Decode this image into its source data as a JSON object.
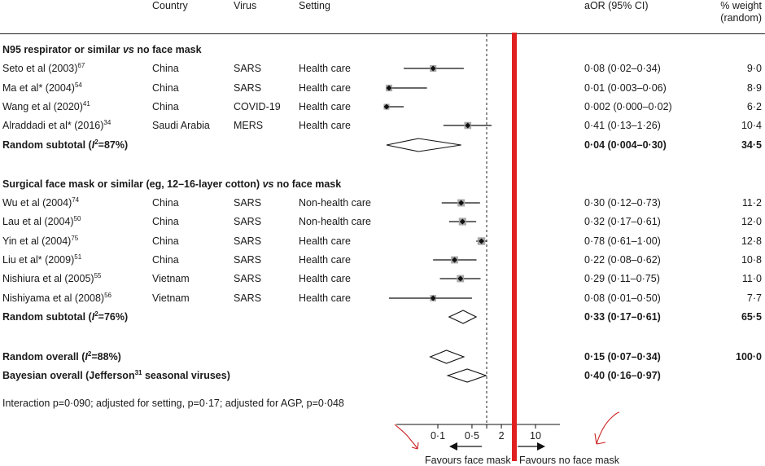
{
  "columns": {
    "country": "Country",
    "virus": "Virus",
    "setting": "Setting",
    "aor": "aOR (95% CI)",
    "weight_line1": "% weight",
    "weight_line2": "(random)"
  },
  "groups": [
    {
      "title_pre": "N95 respirator or similar ",
      "title_vs": "vs",
      "title_post": " no face mask",
      "studies": [
        {
          "author": "Seto et al (2003)",
          "ref": "67",
          "country": "China",
          "virus": "SARS",
          "setting": "Health care",
          "aor_text": "0·08 (0·02–0·34)",
          "weight": "9·0"
        },
        {
          "author": "Ma et al* (2004)",
          "ref": "54",
          "country": "China",
          "virus": "SARS",
          "setting": "Health care",
          "aor_text": "0·01 (0·003–0·06)",
          "weight": "8·9"
        },
        {
          "author": "Wang et al (2020)",
          "ref": "41",
          "country": "China",
          "virus": "COVID-19",
          "setting": "Health care",
          "aor_text": "0·002 (0·000–0·02)",
          "weight": "6·2"
        },
        {
          "author": "Alraddadi et al* (2016)",
          "ref": "34",
          "country": "Saudi Arabia",
          "virus": "MERS",
          "setting": "Health care",
          "aor_text": "0·41 (0·13–1·26)",
          "weight": "10·4"
        }
      ],
      "subtotal": {
        "label_pre": "Random subtotal  (",
        "label_i": "I",
        "label_sup": "2",
        "label_post": "=87%)",
        "aor_text": "0·04 (0·004–0·30)",
        "weight": "34·5"
      }
    },
    {
      "title_pre": "Surgical face mask or similar (eg, 12–16-layer cotton) ",
      "title_vs": "vs",
      "title_post": " no face mask",
      "studies": [
        {
          "author": "Wu et al (2004)",
          "ref": "74",
          "country": "China",
          "virus": "SARS",
          "setting": "Non-health care",
          "aor_text": "0·30 (0·12–0·73)",
          "weight": "11·2"
        },
        {
          "author": "Lau et al (2004)",
          "ref": "50",
          "country": "China",
          "virus": "SARS",
          "setting": "Non-health care",
          "aor_text": "0·32 (0·17–0·61)",
          "weight": "12·0"
        },
        {
          "author": "Yin et al (2004)",
          "ref": "75",
          "country": "China",
          "virus": "SARS",
          "setting": "Health care",
          "aor_text": "0·78 (0·61–1·00)",
          "weight": "12·8"
        },
        {
          "author": "Liu et al* (2009)",
          "ref": "51",
          "country": "China",
          "virus": "SARS",
          "setting": "Health care",
          "aor_text": "0·22 (0·08–0·62)",
          "weight": "10·8"
        },
        {
          "author": "Nishiura et al (2005)",
          "ref": "55",
          "country": "Vietnam",
          "virus": "SARS",
          "setting": "Health care",
          "aor_text": "0·29 (0·11–0·75)",
          "weight": "11·0"
        },
        {
          "author": "Nishiyama et al (2008)",
          "ref": "56",
          "country": "Vietnam",
          "virus": "SARS",
          "setting": "Health care",
          "aor_text": "0·08 (0·01–0·50)",
          "weight": "7·7"
        }
      ],
      "subtotal": {
        "label_pre": "Random subtotal  (",
        "label_i": "I",
        "label_sup": "2",
        "label_post": "=76%)",
        "aor_text": "0·33 (0·17–0·61)",
        "weight": "65·5"
      }
    }
  ],
  "overall": {
    "random": {
      "label_pre": "Random overall  (",
      "label_i": "I",
      "label_sup": "2",
      "label_post": "=88%)",
      "aor_text": "0·15 (0·07–0·34)",
      "weight": "100·0"
    },
    "bayesian": {
      "label_pre": "Bayesian overall (Jefferson",
      "label_sup": "31",
      "label_post": " seasonal viruses)",
      "aor_text": "0·40 (0·16–0·97)"
    }
  },
  "footnote": "Interaction p=0·090; adjusted for setting, p=0·17; adjusted for AGP, p=0·048",
  "axis": {
    "ticks": [
      {
        "value": 0.1,
        "label": "0·1"
      },
      {
        "value": 0.5,
        "label": "0·5"
      },
      {
        "value": 2,
        "label": "2"
      },
      {
        "value": 10,
        "label": "10"
      }
    ],
    "favours_left": "Favours face mask",
    "favours_right": "Favours no face mask"
  },
  "chart_data": {
    "type": "forest",
    "scale": "log",
    "null_value": 1,
    "xlabel_left": "Favours face mask",
    "xlabel_right": "Favours no face mask",
    "studies": [
      {
        "study": "Seto et al (2003)",
        "or": 0.08,
        "lo": 0.02,
        "hi": 0.34,
        "weight": 9.0
      },
      {
        "study": "Ma et al* (2004)",
        "or": 0.01,
        "lo": 0.003,
        "hi": 0.06,
        "weight": 8.9
      },
      {
        "study": "Wang et al (2020)",
        "or": 0.002,
        "lo": 0.0,
        "hi": 0.02,
        "weight": 6.2
      },
      {
        "study": "Alraddadi et al* (2016)",
        "or": 0.41,
        "lo": 0.13,
        "hi": 1.26,
        "weight": 10.4
      },
      {
        "study": "Wu et al (2004)",
        "or": 0.3,
        "lo": 0.12,
        "hi": 0.73,
        "weight": 11.2
      },
      {
        "study": "Lau et al (2004)",
        "or": 0.32,
        "lo": 0.17,
        "hi": 0.61,
        "weight": 12.0
      },
      {
        "study": "Yin et al (2004)",
        "or": 0.78,
        "lo": 0.61,
        "hi": 1.0,
        "weight": 12.8
      },
      {
        "study": "Liu et al* (2009)",
        "or": 0.22,
        "lo": 0.08,
        "hi": 0.62,
        "weight": 10.8
      },
      {
        "study": "Nishiura et al (2005)",
        "or": 0.29,
        "lo": 0.11,
        "hi": 0.75,
        "weight": 11.0
      },
      {
        "study": "Nishiyama et al (2008)",
        "or": 0.08,
        "lo": 0.01,
        "hi": 0.5,
        "weight": 7.7
      }
    ],
    "diamonds": [
      {
        "label": "Random subtotal N95",
        "or": 0.04,
        "lo": 0.004,
        "hi": 0.3
      },
      {
        "label": "Random subtotal surgical",
        "or": 0.33,
        "lo": 0.17,
        "hi": 0.61
      },
      {
        "label": "Random overall",
        "or": 0.15,
        "lo": 0.07,
        "hi": 0.34
      },
      {
        "label": "Bayesian overall",
        "or": 0.4,
        "lo": 0.16,
        "hi": 0.97
      }
    ],
    "reference_line_color": "#e02020",
    "annotation_color": "#cc1f1f"
  }
}
